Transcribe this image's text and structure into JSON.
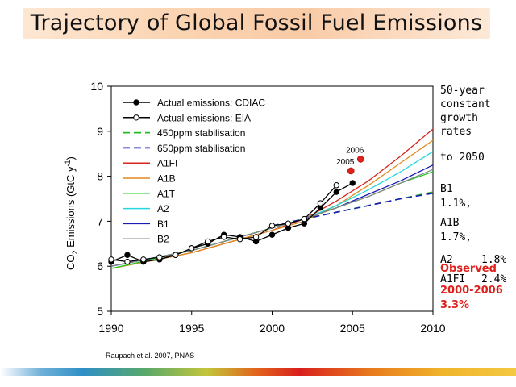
{
  "title": "Trajectory of Global Fossil Fuel Emissions",
  "side_notes": {
    "heading": [
      "50-year",
      "constant",
      "growth",
      "rates"
    ],
    "to_year": "to 2050",
    "rates": [
      {
        "label": "B1",
        "value": "1.1%,"
      },
      {
        "label": "A1B",
        "value": "1.7%,"
      },
      {
        "label": "A2",
        "value": "1.8%"
      },
      {
        "label": "A1FI",
        "value": "2.4%"
      }
    ],
    "observed_label": "Observed",
    "observed_period": "2000-2006",
    "observed_value": "3.3%"
  },
  "source": "Raupach et al. 2007, PNAS",
  "colors": {
    "A1FI": "#d7261e",
    "A1B": "#e08a1e",
    "A1T": "#22cc22",
    "A2": "#22d8dc",
    "B1": "#1a1ab5",
    "B2": "#888888",
    "stab450": "#22bb22",
    "stab650": "#1a1ab5",
    "observed": "#e0201b",
    "banner": "#fbd5b4"
  },
  "chart_data": {
    "type": "line",
    "xlabel": "",
    "ylabel": "CO2 Emissions (GtC y-1)",
    "ylabel_parts": {
      "main": "CO",
      "sub": "2",
      "rest": " Emissions (GtC y",
      "sup": "-1",
      "end": ")"
    },
    "xlim": [
      1990,
      2010
    ],
    "ylim": [
      5,
      10
    ],
    "xticks": [
      1990,
      1995,
      2000,
      2005,
      2010
    ],
    "yticks": [
      5,
      6,
      7,
      8,
      9,
      10
    ],
    "legend_position": "top-left",
    "series": [
      {
        "name": "Actual emissions: CDIAC",
        "style": "line-filled-marker",
        "color": "#000000",
        "x": [
          1990,
          1991,
          1992,
          1993,
          1994,
          1995,
          1996,
          1997,
          1998,
          1999,
          2000,
          2001,
          2002,
          2003,
          2004,
          2005
        ],
        "y": [
          6.1,
          6.25,
          6.1,
          6.15,
          6.25,
          6.4,
          6.5,
          6.7,
          6.65,
          6.55,
          6.7,
          6.85,
          6.95,
          7.3,
          7.65,
          7.85
        ]
      },
      {
        "name": "Actual emissions: EIA",
        "style": "line-open-marker",
        "color": "#000000",
        "x": [
          1990,
          1991,
          1992,
          1993,
          1994,
          1995,
          1996,
          1997,
          1998,
          1999,
          2000,
          2001,
          2002,
          2003,
          2004
        ],
        "y": [
          6.15,
          6.1,
          6.15,
          6.2,
          6.25,
          6.4,
          6.55,
          6.65,
          6.6,
          6.65,
          6.9,
          6.95,
          7.05,
          7.4,
          7.8
        ]
      },
      {
        "name": "450ppm stabilisation",
        "style": "dashed",
        "color": "#22bb22",
        "x": [
          2000,
          2002,
          2004,
          2006,
          2008,
          2010
        ],
        "y": [
          6.9,
          7.05,
          7.2,
          7.35,
          7.5,
          7.65
        ]
      },
      {
        "name": "650ppm stabilisation",
        "style": "dashed",
        "color": "#1a1ab5",
        "x": [
          2000,
          2002,
          2004,
          2006,
          2008,
          2010
        ],
        "y": [
          6.9,
          7.05,
          7.2,
          7.35,
          7.5,
          7.62
        ]
      },
      {
        "name": "A1FI",
        "style": "solid",
        "color": "#d7261e",
        "x": [
          1990,
          1995,
          2000,
          2002,
          2004,
          2006,
          2008,
          2010
        ],
        "y": [
          5.95,
          6.3,
          6.8,
          7.05,
          7.45,
          7.9,
          8.45,
          9.05
        ]
      },
      {
        "name": "A1B",
        "style": "solid",
        "color": "#e08a1e",
        "x": [
          1990,
          1995,
          2000,
          2002,
          2004,
          2006,
          2008,
          2010
        ],
        "y": [
          5.95,
          6.3,
          6.8,
          7.0,
          7.35,
          7.8,
          8.3,
          8.8
        ]
      },
      {
        "name": "A1T",
        "style": "solid",
        "color": "#22cc22",
        "x": [
          1990,
          1995,
          2000,
          2002,
          2004,
          2006,
          2008,
          2010
        ],
        "y": [
          5.95,
          6.35,
          6.85,
          7.05,
          7.3,
          7.55,
          7.85,
          8.1
        ]
      },
      {
        "name": "A2",
        "style": "solid",
        "color": "#22d8dc",
        "x": [
          1990,
          1995,
          2000,
          2002,
          2004,
          2006,
          2008,
          2010
        ],
        "y": [
          6.0,
          6.35,
          6.85,
          7.05,
          7.35,
          7.7,
          8.1,
          8.55
        ]
      },
      {
        "name": "B1",
        "style": "solid",
        "color": "#1a1ab5",
        "x": [
          1990,
          1995,
          2000,
          2002,
          2004,
          2006,
          2008,
          2010
        ],
        "y": [
          6.0,
          6.35,
          6.85,
          7.05,
          7.3,
          7.6,
          7.9,
          8.25
        ]
      },
      {
        "name": "B2",
        "style": "solid",
        "color": "#888888",
        "x": [
          1990,
          1995,
          2000,
          2002,
          2004,
          2006,
          2008,
          2010
        ],
        "y": [
          6.0,
          6.35,
          6.85,
          7.05,
          7.3,
          7.55,
          7.85,
          8.15
        ]
      }
    ],
    "highlight_points": [
      {
        "label": "2005",
        "x": 2004.9,
        "y": 8.12,
        "color": "#e0201b"
      },
      {
        "label": "2006",
        "x": 2005.5,
        "y": 8.38,
        "color": "#e0201b"
      }
    ]
  }
}
